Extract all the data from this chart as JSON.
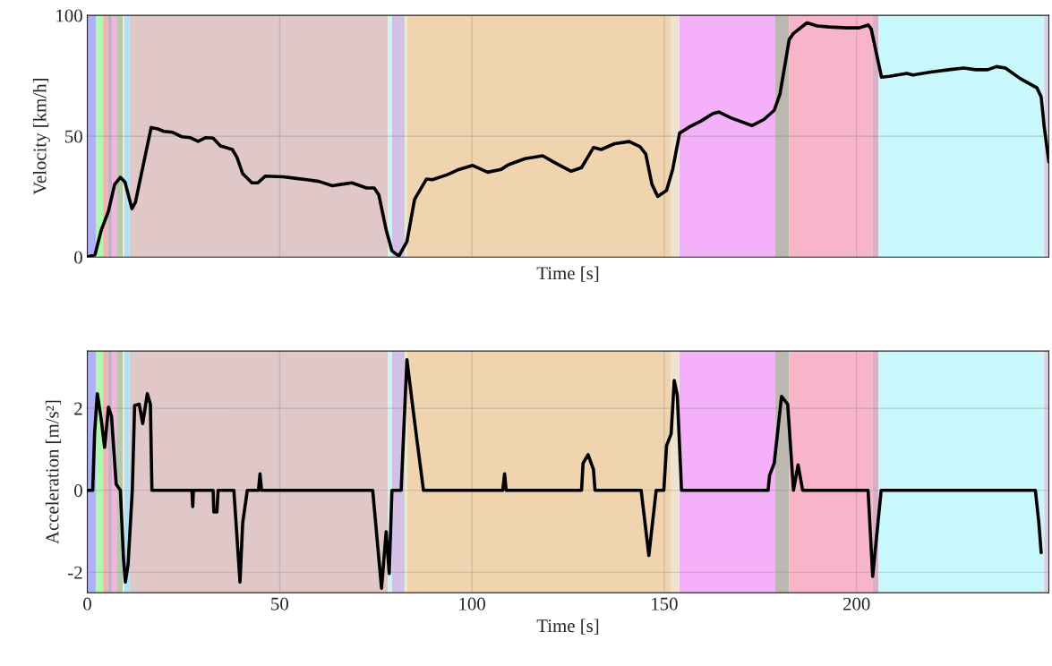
{
  "chart_data": [
    {
      "type": "line",
      "xlabel": "Time [s]",
      "ylabel": "Velocity [km/h]",
      "xlim": [
        0,
        250
      ],
      "ylim": [
        0,
        100
      ],
      "xticks": [
        0,
        50,
        100,
        150,
        200
      ],
      "yticks": [
        0,
        50,
        100
      ],
      "tick_labels": "y",
      "grid": true,
      "bands": [
        {
          "axis": "x",
          "from": 0,
          "to": 2.2,
          "color": "#b0b0f8"
        },
        {
          "axis": "x",
          "from": 2.2,
          "to": 4.1,
          "color": "#b0f8b0"
        },
        {
          "axis": "x",
          "from": 4.1,
          "to": 5.3,
          "color": "#f8b0b0"
        },
        {
          "axis": "x",
          "from": 5.3,
          "to": 6.5,
          "color": "#c8b0c8"
        },
        {
          "axis": "x",
          "from": 6.5,
          "to": 7.6,
          "color": "#f8b0e0"
        },
        {
          "axis": "x",
          "from": 7.6,
          "to": 9.2,
          "color": "#b8c8b0"
        },
        {
          "axis": "x",
          "from": 9.2,
          "to": 9.6,
          "color": "#f8f0b0"
        },
        {
          "axis": "x",
          "from": 9.6,
          "to": 11.0,
          "color": "#b0e0f8"
        },
        {
          "axis": "x",
          "from": 11.0,
          "to": 78.2,
          "color": "#e0c8c8"
        },
        {
          "axis": "x",
          "from": 78.2,
          "to": 79.2,
          "color": "#c8f8f0"
        },
        {
          "axis": "x",
          "from": 79.2,
          "to": 82.5,
          "color": "#d4c0e4"
        },
        {
          "axis": "x",
          "from": 82.5,
          "to": 83.1,
          "color": "#e0f0d0"
        },
        {
          "axis": "x",
          "from": 83.1,
          "to": 151.8,
          "color": "#f0d4b0"
        },
        {
          "axis": "x",
          "from": 151.8,
          "to": 153.8,
          "color": "#ece4d0"
        },
        {
          "axis": "x",
          "from": 153.9,
          "to": 178.8,
          "color": "#f4b0f8"
        },
        {
          "axis": "x",
          "from": 178.8,
          "to": 182.5,
          "color": "#bcb8b0"
        },
        {
          "axis": "x",
          "from": 182.5,
          "to": 204.2,
          "color": "#f8b4c8"
        },
        {
          "axis": "x",
          "from": 204.2,
          "to": 205.7,
          "color": "#d8b0c8"
        },
        {
          "axis": "x",
          "from": 205.7,
          "to": 248.8,
          "color": "#c8f8fc"
        },
        {
          "axis": "x",
          "from": 248.8,
          "to": 250,
          "color": "#dcd0e0"
        }
      ],
      "series": [
        {
          "color": "#000000",
          "x": [
            0,
            2.0,
            3.6,
            5.5,
            7.1,
            8.6,
            9.8,
            11.6,
            12.5,
            16.6,
            18.3,
            19.9,
            22.2,
            24.5,
            26.8,
            28.8,
            30.7,
            32.7,
            34.6,
            37.7,
            38.9,
            40.4,
            42.8,
            44.3,
            46.3,
            50.9,
            54,
            57.1,
            60.2,
            63.7,
            66.1,
            68.8,
            72.6,
            74.6,
            75.8,
            77.7,
            79.2,
            81.0,
            83.1,
            85.1,
            88.2,
            89.7,
            93.6,
            96.7,
            100.2,
            104.1,
            107.6,
            109.5,
            113.8,
            118.4,
            121.5,
            125.8,
            128.5,
            131.6,
            133.6,
            137.1,
            140.9,
            143.7,
            145.2,
            146.8,
            148.3,
            150.6,
            152.2,
            154.0,
            156.5,
            159.6,
            162.7,
            164.2,
            167.3,
            172.8,
            175.9,
            178.6,
            180.1,
            182.5,
            183.6,
            187.1,
            189.8,
            192.9,
            197.6,
            200.7,
            203,
            203.8,
            206.5,
            208.5,
            213.1,
            214.7,
            219.3,
            224,
            227.9,
            231,
            234.1,
            236.4,
            238.7,
            242.6,
            246.9,
            248,
            248.8,
            250
          ],
          "values": [
            0,
            1,
            11,
            19,
            30,
            33,
            31,
            20,
            22.6,
            53.6,
            53,
            52,
            51.6,
            49.8,
            49.4,
            47.9,
            49.4,
            49.2,
            46,
            44.5,
            41.3,
            34.5,
            30.7,
            30.7,
            33.5,
            33.2,
            32.6,
            32,
            31.3,
            29.5,
            30.1,
            30.7,
            28.6,
            28.6,
            25.7,
            11.3,
            2.6,
            0.4,
            6.4,
            23.9,
            32.3,
            32,
            34.1,
            36.3,
            37.9,
            35.1,
            36.3,
            38.2,
            40.7,
            41.9,
            39.1,
            35.5,
            37,
            45.3,
            44.5,
            46.9,
            47.8,
            45.7,
            42.6,
            30.1,
            25.1,
            27.6,
            36.3,
            51.3,
            53.8,
            56.3,
            59.4,
            60,
            57.6,
            54.4,
            56.9,
            60.7,
            67.5,
            90,
            92.5,
            96.9,
            95.6,
            95.2,
            94.8,
            94.8,
            96,
            94.4,
            74.4,
            74.8,
            76,
            75.3,
            76.5,
            77.5,
            78.2,
            77.5,
            77.5,
            78.8,
            78.2,
            73.8,
            70,
            66.3,
            53.8,
            39.4
          ]
        }
      ]
    },
    {
      "type": "line",
      "xlabel": "Time [s]",
      "ylabel": "Acceleration [m/s²]",
      "xlim": [
        0,
        250
      ],
      "ylim": [
        -2.5,
        3.4
      ],
      "xticks": [
        0,
        50,
        100,
        150,
        200
      ],
      "yticks": [
        -2,
        0,
        2
      ],
      "grid": true,
      "bands": [
        {
          "axis": "x",
          "from": 0,
          "to": 2.2,
          "color": "#b0b0f8"
        },
        {
          "axis": "x",
          "from": 2.2,
          "to": 4.1,
          "color": "#b0f8b0"
        },
        {
          "axis": "x",
          "from": 4.1,
          "to": 5.3,
          "color": "#f8b0b0"
        },
        {
          "axis": "x",
          "from": 5.3,
          "to": 6.5,
          "color": "#c8b0c8"
        },
        {
          "axis": "x",
          "from": 6.5,
          "to": 7.6,
          "color": "#f8b0e0"
        },
        {
          "axis": "x",
          "from": 7.6,
          "to": 9.2,
          "color": "#b8c8b0"
        },
        {
          "axis": "x",
          "from": 9.2,
          "to": 9.6,
          "color": "#f8f0b0"
        },
        {
          "axis": "x",
          "from": 9.6,
          "to": 11.0,
          "color": "#b0e0f8"
        },
        {
          "axis": "x",
          "from": 11.0,
          "to": 78.2,
          "color": "#e0c8c8"
        },
        {
          "axis": "x",
          "from": 78.2,
          "to": 79.2,
          "color": "#c8f8f0"
        },
        {
          "axis": "x",
          "from": 79.2,
          "to": 82.5,
          "color": "#d4c0e4"
        },
        {
          "axis": "x",
          "from": 82.5,
          "to": 83.1,
          "color": "#e0f0d0"
        },
        {
          "axis": "x",
          "from": 83.1,
          "to": 151.8,
          "color": "#f0d4b0"
        },
        {
          "axis": "x",
          "from": 151.8,
          "to": 153.8,
          "color": "#ece4d0"
        },
        {
          "axis": "x",
          "from": 153.9,
          "to": 178.8,
          "color": "#f4b0f8"
        },
        {
          "axis": "x",
          "from": 178.8,
          "to": 182.5,
          "color": "#bcb8b0"
        },
        {
          "axis": "x",
          "from": 182.5,
          "to": 204.2,
          "color": "#f8b4c8"
        },
        {
          "axis": "x",
          "from": 204.2,
          "to": 205.7,
          "color": "#d8b0c8"
        },
        {
          "axis": "x",
          "from": 205.7,
          "to": 248.8,
          "color": "#c8f8fc"
        },
        {
          "axis": "x",
          "from": 248.8,
          "to": 250,
          "color": "#dcd0e0"
        }
      ],
      "series": [
        {
          "color": "#000000",
          "x": [
            0,
            1.4,
            1.9,
            2.6,
            3.6,
            4.5,
            5.5,
            6.3,
            7.5,
            8.6,
            9.4,
            9.9,
            10.6,
            11.7,
            12.3,
            13.5,
            14.4,
            15.6,
            16.4,
            16.8,
            27.2,
            27.4,
            27.6,
            32.7,
            32.9,
            33.7,
            34.0,
            38.1,
            39.7,
            40.4,
            41.6,
            44.5,
            44.9,
            45.3,
            74.2,
            76.5,
            77.7,
            78.5,
            79.2,
            81.6,
            83.1,
            85.1,
            85.8,
            87.4,
            108.0,
            108.5,
            108.9,
            128.5,
            128.9,
            130.2,
            131.6,
            132,
            144.0,
            146,
            146.4,
            146.8,
            147.9,
            149.9,
            150.6,
            151.8,
            152.6,
            153.4,
            154.5,
            177.0,
            177.4,
            178.6,
            180.5,
            182.1,
            183.6,
            184.8,
            186,
            203.0,
            204.2,
            205.0,
            205.7,
            206.4,
            246.5,
            247.4,
            248
          ],
          "values": [
            0,
            0,
            1.4,
            2.36,
            1.74,
            1.05,
            2.03,
            1.8,
            0.15,
            0,
            -1.66,
            -2.24,
            -1.81,
            0,
            2.07,
            2.1,
            1.63,
            2.36,
            2.1,
            0,
            0,
            -0.4,
            0,
            0,
            -0.53,
            -0.53,
            0,
            0,
            -2.24,
            -0.79,
            0,
            0,
            0.4,
            0,
            0,
            -2.39,
            -1.01,
            -2.03,
            0,
            0,
            3.19,
            1.67,
            1.16,
            0,
            0,
            0.4,
            0,
            0,
            0.66,
            0.87,
            0.51,
            0,
            0,
            -1.59,
            null,
            null,
            0,
            0,
            1.09,
            1.38,
            2.68,
            2.32,
            0,
            0,
            0.37,
            0.66,
            2.29,
            2.1,
            0,
            0.62,
            0,
            0,
            -2.1,
            null,
            null,
            0,
            0,
            -0.79,
            -1.52
          ]
        }
      ]
    }
  ]
}
